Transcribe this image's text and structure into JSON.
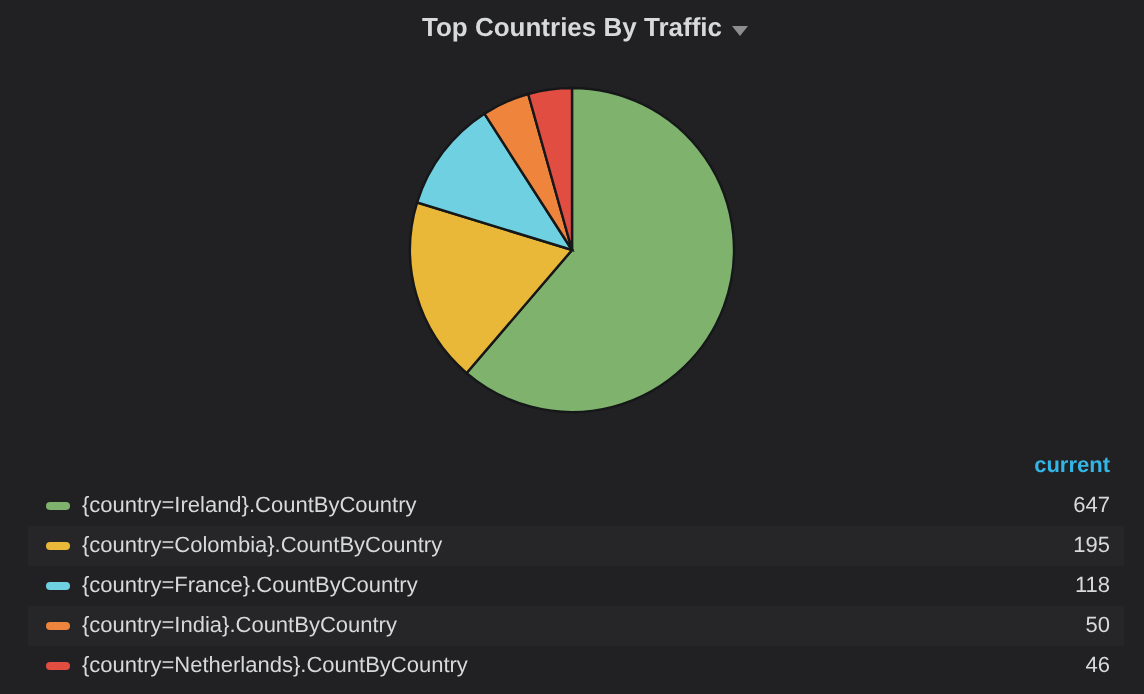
{
  "chart_data": {
    "type": "pie",
    "title": "Top Countries By Traffic",
    "legend_title": "current",
    "categories": [
      "{country=Ireland}.CountByCountry",
      "{country=Colombia}.CountByCountry",
      "{country=France}.CountByCountry",
      "{country=India}.CountByCountry",
      "{country=Netherlands}.CountByCountry"
    ],
    "values": [
      647,
      195,
      118,
      50,
      46
    ],
    "colors": [
      "#7eb26d",
      "#eab839",
      "#6ed0e0",
      "#ef843c",
      "#e24d42"
    ],
    "legend": "bottom",
    "data_labels": true
  }
}
